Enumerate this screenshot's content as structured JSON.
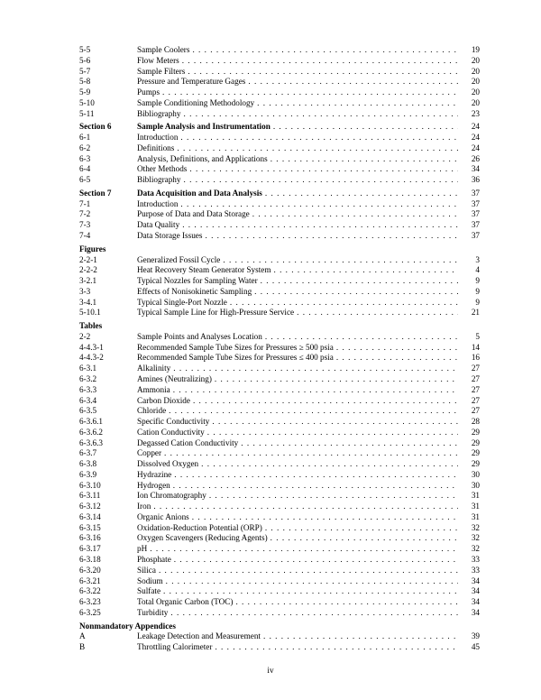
{
  "entries": [
    {
      "num": "5-5",
      "title": "Sample Coolers",
      "page": "19"
    },
    {
      "num": "5-6",
      "title": "Flow Meters",
      "page": "20"
    },
    {
      "num": "5-7",
      "title": "Sample Filters",
      "page": "20"
    },
    {
      "num": "5-8",
      "title": "Pressure and Temperature Gages",
      "page": "20"
    },
    {
      "num": "5-9",
      "title": "Pumps",
      "page": "20"
    },
    {
      "num": "5-10",
      "title": "Sample Conditioning Methodology",
      "page": "20"
    },
    {
      "num": "5-11",
      "title": "Bibliography",
      "page": "23"
    },
    {
      "num": "Section 6",
      "title": "Sample Analysis and Instrumentation",
      "page": "24",
      "bold": true,
      "gap": true
    },
    {
      "num": "6-1",
      "title": "Introduction",
      "page": "24"
    },
    {
      "num": "6-2",
      "title": "Definitions",
      "page": "24"
    },
    {
      "num": "6-3",
      "title": "Analysis, Definitions, and Applications",
      "page": "26"
    },
    {
      "num": "6-4",
      "title": "Other Methods",
      "page": "34"
    },
    {
      "num": "6-5",
      "title": "Bibliography",
      "page": "36"
    },
    {
      "num": "Section 7",
      "title": "Data Acquisition and Data Analysis",
      "page": "37",
      "bold": true,
      "gap": true
    },
    {
      "num": "7-1",
      "title": "Introduction",
      "page": "37"
    },
    {
      "num": "7-2",
      "title": "Purpose of Data and Data Storage",
      "page": "37"
    },
    {
      "num": "7-3",
      "title": "Data Quality",
      "page": "37"
    },
    {
      "num": "7-4",
      "title": "Data Storage Issues",
      "page": "37"
    },
    {
      "num": "Figures",
      "title": "",
      "page": "",
      "heading": true,
      "gap": true
    },
    {
      "num": "2-2-1",
      "title": "Generalized Fossil Cycle",
      "page": "3"
    },
    {
      "num": "2-2-2",
      "title": "Heat Recovery Steam Generator System",
      "page": "4"
    },
    {
      "num": "3-2.1",
      "title": "Typical Nozzles for Sampling Water",
      "page": "9"
    },
    {
      "num": "3-3",
      "title": "Effects of Nonisokinetic Sampling",
      "page": "9"
    },
    {
      "num": "3-4.1",
      "title": "Typical Single-Port Nozzle",
      "page": "9"
    },
    {
      "num": "5-10.1",
      "title": "Typical Sample Line for High-Pressure Service",
      "page": "21"
    },
    {
      "num": "Tables",
      "title": "",
      "page": "",
      "heading": true,
      "gap": true
    },
    {
      "num": "2-2",
      "title": "Sample Points and Analyses Location",
      "page": "5"
    },
    {
      "num": "4-4.3-1",
      "title": "Recommended Sample Tube Sizes for Pressures ≥ 500 psia",
      "page": "14"
    },
    {
      "num": "4-4.3-2",
      "title": "Recommended Sample Tube Sizes for Pressures ≤ 400 psia",
      "page": "16"
    },
    {
      "num": "6-3.1",
      "title": "Alkalinity",
      "page": "27"
    },
    {
      "num": "6-3.2",
      "title": "Amines (Neutralizing)",
      "page": "27"
    },
    {
      "num": "6-3.3",
      "title": "Ammonia",
      "page": "27"
    },
    {
      "num": "6-3.4",
      "title": "Carbon Dioxide",
      "page": "27"
    },
    {
      "num": "6-3.5",
      "title": "Chloride",
      "page": "27"
    },
    {
      "num": "6-3.6.1",
      "title": "Specific Conductivity",
      "page": "28"
    },
    {
      "num": "6-3.6.2",
      "title": "Cation Conductivity",
      "page": "29"
    },
    {
      "num": "6-3.6.3",
      "title": "Degassed Cation Conductivity",
      "page": "29"
    },
    {
      "num": "6-3.7",
      "title": "Copper",
      "page": "29"
    },
    {
      "num": "6-3.8",
      "title": "Dissolved Oxygen",
      "page": "29"
    },
    {
      "num": "6-3.9",
      "title": "Hydrazine",
      "page": "30"
    },
    {
      "num": "6-3.10",
      "title": "Hydrogen",
      "page": "30"
    },
    {
      "num": "6-3.11",
      "title": "Ion Chromatography",
      "page": "31"
    },
    {
      "num": "6-3.12",
      "title": "Iron",
      "page": "31"
    },
    {
      "num": "6-3.14",
      "title": "Organic Anions",
      "page": "31"
    },
    {
      "num": "6-3.15",
      "title": "Oxidation-Reduction Potential (ORP)",
      "page": "32"
    },
    {
      "num": "6-3.16",
      "title": "Oxygen Scavengers (Reducing Agents)",
      "page": "32"
    },
    {
      "num": "6-3.17",
      "title": "pH",
      "page": "32"
    },
    {
      "num": "6-3.18",
      "title": "Phosphate",
      "page": "33"
    },
    {
      "num": "6-3.20",
      "title": "Silica",
      "page": "33"
    },
    {
      "num": "6-3.21",
      "title": "Sodium",
      "page": "34"
    },
    {
      "num": "6-3.22",
      "title": "Sulfate",
      "page": "34"
    },
    {
      "num": "6-3.23",
      "title": "Total Organic Carbon (TOC)",
      "page": "34"
    },
    {
      "num": "6-3.25",
      "title": "Turbidity",
      "page": "34"
    },
    {
      "num": "Nonmandatory Appendices",
      "title": "",
      "page": "",
      "heading": true,
      "gap": true
    },
    {
      "num": "A",
      "title": "Leakage Detection and Measurement",
      "page": "39"
    },
    {
      "num": "B",
      "title": "Throttling Calorimeter",
      "page": "45"
    }
  ],
  "page_label": "iv"
}
